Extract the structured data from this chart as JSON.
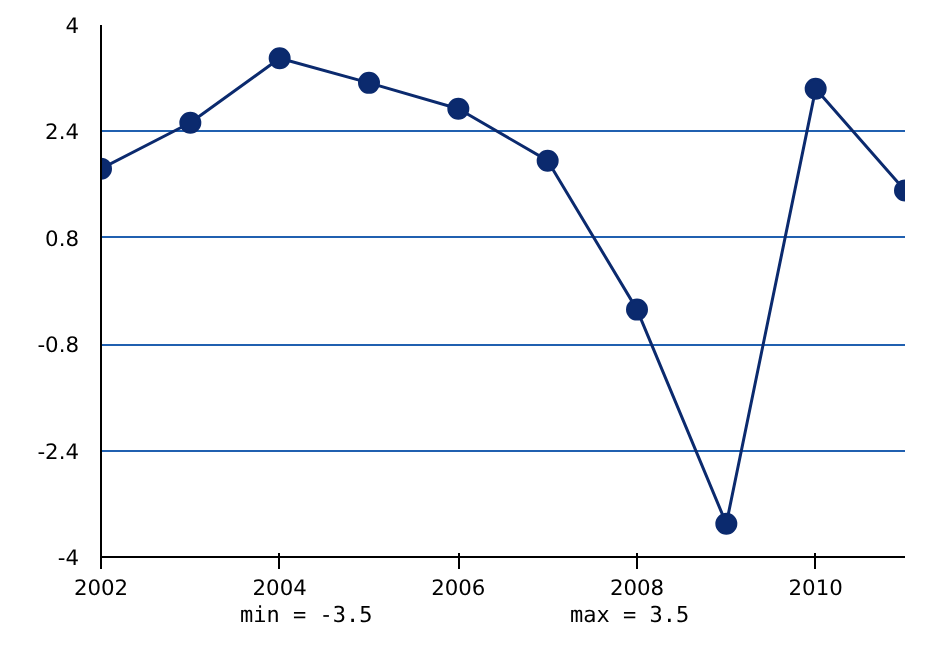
{
  "chart_data": {
    "type": "line",
    "x": [
      2002,
      2003,
      2004,
      2005,
      2006,
      2007,
      2008,
      2009,
      2010,
      2011
    ],
    "series": [
      {
        "color": "#0b2a6e",
        "values": [
          1.84,
          2.53,
          3.5,
          3.13,
          2.74,
          1.96,
          -0.28,
          -3.5,
          3.04,
          1.51
        ]
      }
    ],
    "xlim": [
      2002,
      2011
    ],
    "xticks": [
      2002,
      2004,
      2006,
      2008,
      2010
    ],
    "ylim": [
      -4,
      4
    ],
    "yticks": [
      -4,
      -2.4,
      -0.8,
      0.8,
      2.4,
      4
    ],
    "grid": "y",
    "marker": "circle",
    "line_style": "solid",
    "annotations": [
      "min = -3.5",
      "max = 3.5"
    ]
  }
}
